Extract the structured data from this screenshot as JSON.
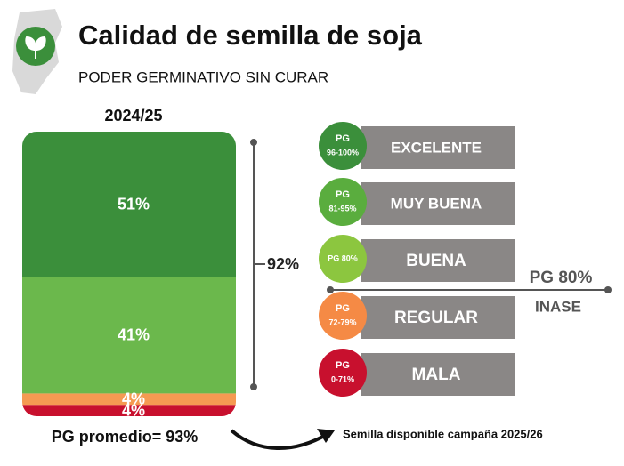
{
  "chart_data": {
    "type": "stacked-bar",
    "title": "Calidad de semilla de soja",
    "subtitle": "PODER GERMINATIVO SIN CURAR",
    "categories": [
      "2024/25"
    ],
    "ylim": [
      0,
      100
    ],
    "series": [
      {
        "color": "#3b8f3b",
        "values": [
          51
        ],
        "value_labels": [
          "51%"
        ]
      },
      {
        "color": "#6bb84c",
        "values": [
          41
        ],
        "value_labels": [
          "41%"
        ]
      },
      {
        "color": "#f59a52",
        "values": [
          4
        ],
        "value_labels": [
          "4%"
        ]
      },
      {
        "color": "#c8102e",
        "values": [
          4
        ],
        "value_labels": [
          "4%"
        ]
      }
    ],
    "bracket_label": "92%",
    "average_label": "PG promedio= 93%",
    "legend": [
      {
        "badge": [
          "PG",
          "96-100%"
        ],
        "label": "EXCELENTE",
        "color": "#3b8f3b"
      },
      {
        "badge": [
          "PG",
          "81-95%"
        ],
        "label": "MUY BUENA",
        "color": "#5aad3e"
      },
      {
        "badge": [
          "PG 80%"
        ],
        "label": "BUENA",
        "color": "#8cc63f"
      },
      {
        "badge": [
          "PG",
          "72-79%"
        ],
        "label": "REGULAR",
        "color": "#f58a45"
      },
      {
        "badge": [
          "PG",
          "0-71%"
        ],
        "label": "MALA",
        "color": "#c8102e"
      }
    ],
    "threshold_label": "PG 80%",
    "threshold_source": "INASE",
    "footnote": "Semilla disponible campaña 2025/26"
  }
}
